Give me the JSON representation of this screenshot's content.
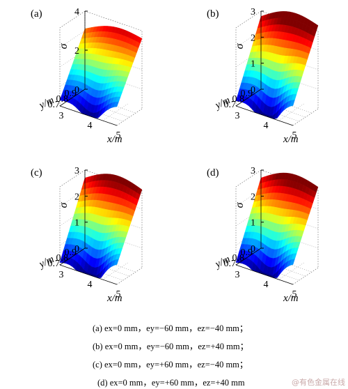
{
  "chart_data": [
    {
      "type": "surface3d",
      "panel": "(a)",
      "zlabel": "σ",
      "xlabel": "x/m",
      "ylabel": "y/m",
      "xticks": [
        "3",
        "4",
        "5"
      ],
      "yticks": [
        "0.7",
        "0.8",
        "0.9"
      ],
      "zticks": [
        "0",
        "2",
        "4"
      ],
      "xlim": [
        3,
        5
      ],
      "ylim": [
        0.65,
        0.95
      ],
      "zlim": [
        0,
        4
      ],
      "corner_heights": {
        "back_left": 3.1,
        "back_right": 3.6,
        "front_left": 0.3,
        "front_right": 1.0
      }
    },
    {
      "type": "surface3d",
      "panel": "(b)",
      "zlabel": "σ",
      "xlabel": "x/m",
      "ylabel": "y/m",
      "xticks": [
        "3",
        "4",
        "5"
      ],
      "yticks": [
        "0.7",
        "0.8",
        "0.9"
      ],
      "zticks": [
        "0",
        "1",
        "2",
        "3"
      ],
      "xlim": [
        3,
        5
      ],
      "ylim": [
        0.65,
        0.95
      ],
      "zlim": [
        0,
        3
      ],
      "corner_heights": {
        "back_left": 2.8,
        "back_right": 3.2,
        "front_left": 0.2,
        "front_right": 0.8
      }
    },
    {
      "type": "surface3d",
      "panel": "(c)",
      "zlabel": "σ",
      "xlabel": "x/m",
      "ylabel": "y/m",
      "xticks": [
        "3",
        "4",
        "5"
      ],
      "yticks": [
        "0.7",
        "0.8",
        "0.9"
      ],
      "zticks": [
        "0",
        "1",
        "2",
        "3"
      ],
      "xlim": [
        3,
        5
      ],
      "ylim": [
        0.65,
        0.95
      ],
      "zlim": [
        0,
        3
      ],
      "corner_heights": {
        "back_left": 2.7,
        "back_right": 3.0,
        "front_left": 0.1,
        "front_right": 0.8
      }
    },
    {
      "type": "surface3d",
      "panel": "(d)",
      "zlabel": "σ",
      "xlabel": "x/m",
      "ylabel": "y/m",
      "xticks": [
        "3",
        "4",
        "5"
      ],
      "yticks": [
        "0.7",
        "0.8",
        "0.9"
      ],
      "zticks": [
        "0",
        "1",
        "2",
        "3"
      ],
      "xlim": [
        3,
        5
      ],
      "ylim": [
        0.65,
        0.95
      ],
      "zlim": [
        0,
        3
      ],
      "corner_heights": {
        "back_left": 2.7,
        "back_right": 3.1,
        "front_left": 0.1,
        "front_right": 0.8
      }
    }
  ],
  "captions": [
    "(a) ex=0 mm，ey=−60 mm，ez=−40 mm；",
    "(b) ex=0 mm，ey=−60 mm，ez=+40 mm；",
    "(c) ex=0 mm，ey=+60 mm，ez=−40 mm；",
    "(d) ex=0 mm，ey=+60 mm，ez=+40 mm"
  ],
  "watermark": "@有色金属在线",
  "colormap": [
    "#00008f",
    "#0000ff",
    "#00ffff",
    "#ffff00",
    "#ff0000",
    "#800000"
  ]
}
